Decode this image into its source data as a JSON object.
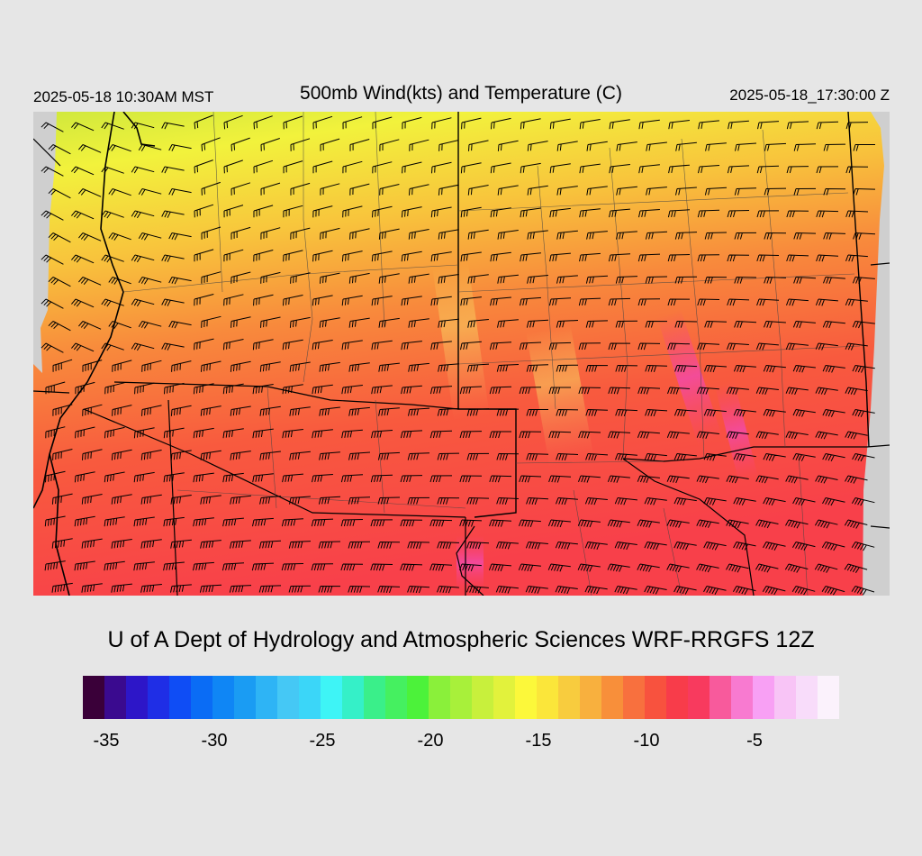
{
  "header": {
    "local_time": "2025-05-18 10:30AM MST",
    "title": "500mb Wind(kts) and Temperature (C)",
    "utc_time": "2025-05-18_17:30:00 Z"
  },
  "credit": "U of A Dept of Hydrology and Atmospheric Sciences WRF-RRGFS 12Z",
  "colorbar": {
    "colors": [
      "#3a0039",
      "#3a0a8f",
      "#2d16c8",
      "#1f2ee6",
      "#0f4df5",
      "#0a6cf5",
      "#0f86f5",
      "#1a9cf3",
      "#2eb4f5",
      "#45c8f5",
      "#3bd6f8",
      "#3ef4f6",
      "#35f0c8",
      "#3aef8a",
      "#45f060",
      "#4cf23a",
      "#8af03a",
      "#a8f03a",
      "#c8f03c",
      "#e2f23c",
      "#fcf83a",
      "#fbe63a",
      "#f8cc3e",
      "#f8b03e",
      "#f88f3a",
      "#f8703e",
      "#f8523e",
      "#f83c4a",
      "#f83a5e",
      "#f85a9c",
      "#f87ad0",
      "#f8a0f4",
      "#f8c4f6",
      "#f8dcfa",
      "#fbf2fc"
    ],
    "min": -36,
    "max": -1,
    "tick_values": [
      -35,
      -30,
      -25,
      -20,
      -15,
      -10,
      -5
    ],
    "tick_labels": [
      "-35",
      "-30",
      "-25",
      "-20",
      "-15",
      "-10",
      "-5"
    ],
    "units": "C"
  }
}
